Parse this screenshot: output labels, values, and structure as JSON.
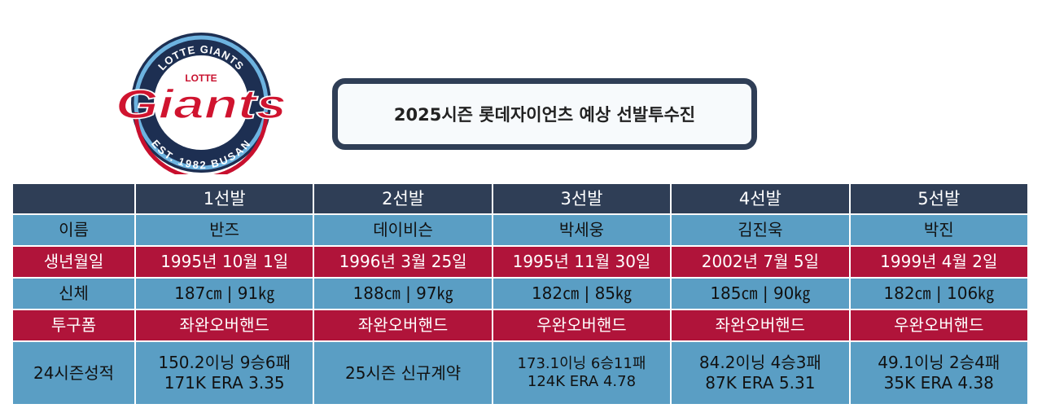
{
  "logo": {
    "top_arc": "LOTTE GIANTS",
    "small": "LOTTE",
    "main": "Giants",
    "bottom_arc": "EST. 1982 BUSAN"
  },
  "title": "2025시즌 롯데자이언츠 예상 선발투수진",
  "colors": {
    "header": "#2f3e56",
    "blue_row": "#5a9ec4",
    "red_row": "#b0143a"
  },
  "table": {
    "columns": [
      "",
      "1선발",
      "2선발",
      "3선발",
      "4선발",
      "5선발"
    ],
    "rows": [
      {
        "label": "이름",
        "style": "blue",
        "values": [
          "반즈",
          "데이비슨",
          "박세웅",
          "김진욱",
          "박진"
        ]
      },
      {
        "label": "생년월일",
        "style": "red",
        "values": [
          "1995년 10월 1일",
          "1996년 3월 25일",
          "1995년 11월 30일",
          "2002년 7월 5일",
          "1999년 4월 2일"
        ]
      },
      {
        "label": "신체",
        "style": "blue",
        "values": [
          "187㎝ | 91㎏",
          "188㎝ | 97㎏",
          "182㎝ | 85㎏",
          "185㎝ | 90㎏",
          "182㎝ | 106㎏"
        ]
      },
      {
        "label": "투구폼",
        "style": "red",
        "values": [
          "좌완오버핸드",
          "좌완오버핸드",
          "우완오버핸드",
          "좌완오버핸드",
          "우완오버핸드"
        ]
      }
    ],
    "stats": {
      "label": "24시즌성적",
      "values": [
        [
          "150.2이닝 9승6패",
          "171K ERA 3.35"
        ],
        [
          "25시즌 신규계약"
        ],
        [
          "173.1이닝 6승11패",
          "124K ERA 4.78"
        ],
        [
          "84.2이닝 4승3패",
          "87K ERA 5.31"
        ],
        [
          "49.1이닝 2승4패",
          "35K ERA 4.38"
        ]
      ]
    }
  }
}
